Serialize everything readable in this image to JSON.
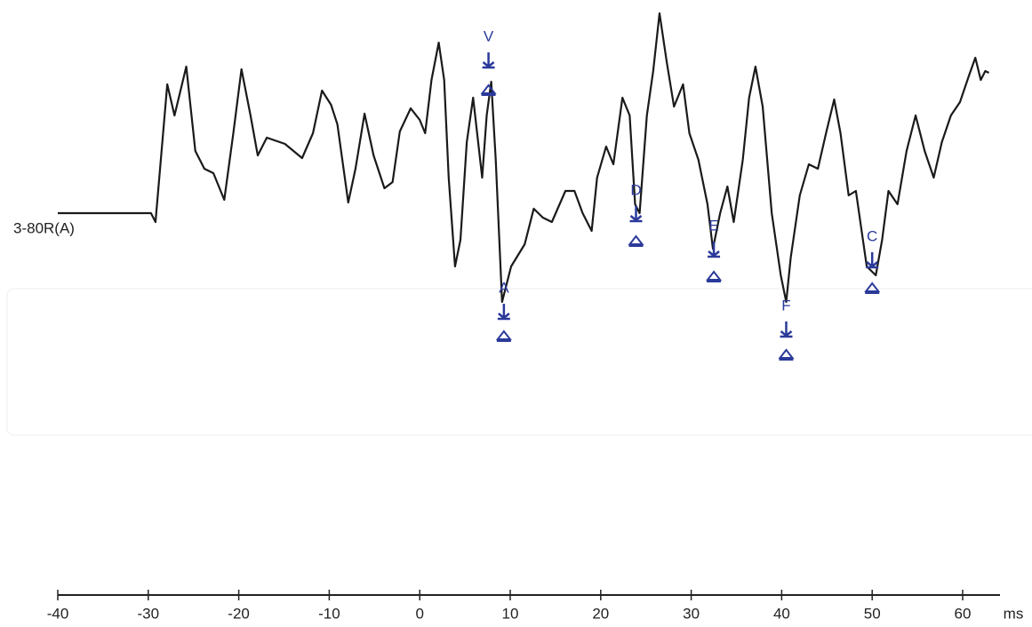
{
  "chart_data": {
    "type": "line",
    "series": [
      {
        "name": "3-80R(A)",
        "color": "#1a1a1a",
        "x": [
          -40,
          -29.7,
          -29.2,
          -27.9,
          -27.1,
          -25.8,
          -24.8,
          -23.8,
          -22.8,
          -21.6,
          -20.6,
          -19.7,
          -18.7,
          -17.9,
          -16.9,
          -14.9,
          -13.0,
          -11.8,
          -10.8,
          -9.8,
          -9.1,
          -7.9,
          -7.1,
          -6.1,
          -5.1,
          -3.9,
          -3.0,
          -2.2,
          -1.0,
          0.0,
          0.6,
          1.3,
          2.1,
          2.7,
          3.2,
          3.9,
          4.5,
          5.2,
          5.9,
          6.4,
          6.9,
          7.4,
          7.9,
          8.4,
          9.1,
          10.1,
          11.6,
          12.6,
          13.6,
          14.6,
          16.1,
          17.1,
          18.0,
          19.0,
          19.6,
          20.6,
          21.4,
          22.4,
          23.2,
          23.8,
          24.3,
          25.1,
          25.8,
          26.5,
          27.3,
          28.1,
          29.1,
          29.8,
          30.8,
          31.8,
          32.4,
          33.2,
          34.0,
          34.7,
          35.7,
          36.4,
          37.1,
          37.9,
          38.9,
          39.9,
          40.5,
          41.0,
          42.0,
          43.0,
          44.0,
          44.9,
          45.8,
          46.5,
          47.4,
          48.2,
          49.4,
          50.4,
          51.1,
          51.8,
          52.8,
          53.8,
          54.8,
          55.8,
          56.8,
          57.7,
          58.7,
          59.7,
          60.7,
          61.4,
          62.0,
          62.5,
          62.9
        ],
        "values": [
          0,
          0,
          -1,
          14.5,
          11,
          16.5,
          7,
          5,
          4.5,
          1.5,
          9,
          16.2,
          11,
          6.5,
          8.5,
          7.8,
          6.2,
          9,
          13.8,
          12.2,
          10,
          1.2,
          5,
          11.2,
          6.5,
          2.8,
          3.5,
          9.2,
          11.8,
          10.5,
          9,
          15,
          19.2,
          15,
          4,
          -6,
          -3,
          8,
          13,
          8.5,
          4,
          11,
          14.8,
          6,
          -10,
          -6,
          -3.5,
          0.5,
          -0.5,
          -1,
          2.5,
          2.5,
          0,
          -2,
          4,
          7.5,
          5.5,
          13,
          11,
          1,
          0,
          11,
          16,
          22.5,
          17,
          12,
          14.5,
          9,
          6,
          1,
          -4,
          0,
          3,
          -1,
          6,
          13,
          16.5,
          12,
          0,
          -7,
          -10,
          -5,
          2,
          5.5,
          5,
          9,
          12.8,
          9,
          2,
          2.5,
          -6,
          -7,
          -3,
          2.5,
          1,
          7,
          11,
          7,
          4,
          8,
          11,
          12.5,
          15.5,
          17.5,
          15,
          16,
          15.8
        ]
      }
    ],
    "markers": [
      {
        "label": "V",
        "x": 7.6,
        "peak_y": 16.5,
        "trough_y": 13.5
      },
      {
        "label": "A",
        "x": 9.3,
        "peak_y": -11.8,
        "trough_y": -14.2
      },
      {
        "label": "D",
        "x": 23.9,
        "peak_y": -0.8,
        "trough_y": -3.5
      },
      {
        "label": "E",
        "x": 32.5,
        "peak_y": -4.8,
        "trough_y": -7.5
      },
      {
        "label": "F",
        "x": 40.5,
        "peak_y": -13.8,
        "trough_y": -16.3
      },
      {
        "label": "C",
        "x": 50,
        "peak_y": -6,
        "trough_y": -8.8
      }
    ],
    "marker_color": "#2b3a9a",
    "x_unit": "ms",
    "xlim": [
      -40,
      60
    ],
    "xticks": [
      -40,
      -30,
      -20,
      -10,
      0,
      10,
      20,
      30,
      40,
      50,
      60
    ],
    "ylim": [
      -43,
      24
    ]
  }
}
